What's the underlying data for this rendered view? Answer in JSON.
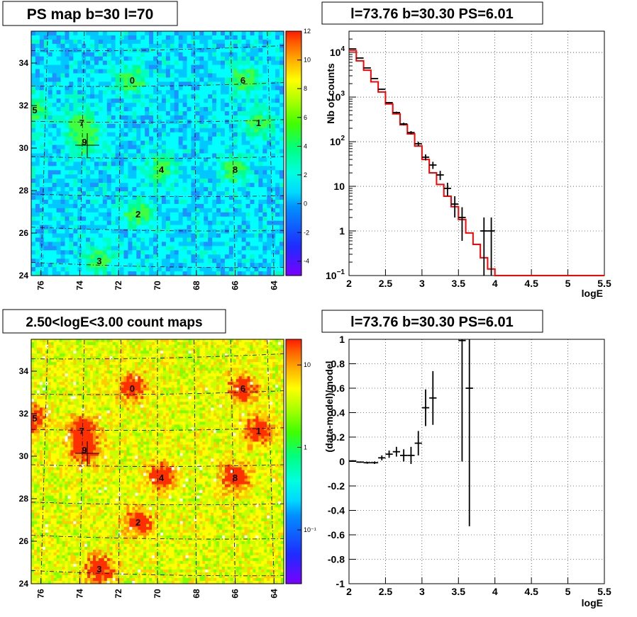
{
  "panels": {
    "ps_map": {
      "title": "PS map b=30 l=70",
      "x_ticks": [
        "76",
        "74",
        "72",
        "70",
        "68",
        "66",
        "64"
      ],
      "y_ticks": [
        "24",
        "26",
        "28",
        "30",
        "32",
        "34"
      ],
      "colorbar_ticks": [
        "12",
        "10",
        "8",
        "6",
        "4",
        "2",
        "0",
        "-2",
        "-4"
      ],
      "sources": [
        "0",
        "1",
        "2",
        "3",
        "4",
        "5",
        "6",
        "7",
        "8",
        "9"
      ]
    },
    "count_map": {
      "title": "2.50<logE<3.00 count maps",
      "x_ticks": [
        "76",
        "74",
        "72",
        "70",
        "68",
        "66",
        "64"
      ],
      "y_ticks": [
        "24",
        "26",
        "28",
        "30",
        "32",
        "34"
      ],
      "colorbar_ticks": [
        "10",
        "1",
        "10⁻¹"
      ],
      "sources": [
        "0",
        "1",
        "2",
        "3",
        "4",
        "5",
        "6",
        "7",
        "8",
        "9"
      ]
    },
    "spectrum": {
      "title": "l=73.76 b=30.30 PS=6.01"
    },
    "residual": {
      "title": "l=73.76 b=30.30 PS=6.01"
    }
  },
  "chart_data": [
    {
      "type": "heatmap",
      "title": "PS map b=30 l=70",
      "xlim": [
        76.5,
        63.5
      ],
      "ylim": [
        24,
        35.5
      ],
      "colorbar_range": [
        -5,
        12
      ],
      "sources": [
        {
          "label": "0",
          "l": 71.3,
          "b": 33.2
        },
        {
          "label": "1",
          "l": 64.8,
          "b": 31.2
        },
        {
          "label": "2",
          "l": 71.0,
          "b": 26.9
        },
        {
          "label": "3",
          "l": 73.0,
          "b": 24.7
        },
        {
          "label": "4",
          "l": 69.8,
          "b": 29.0
        },
        {
          "label": "5",
          "l": 76.5,
          "b": 31.8
        },
        {
          "label": "6",
          "l": 65.6,
          "b": 33.2
        },
        {
          "label": "7",
          "l": 73.9,
          "b": 31.2
        },
        {
          "label": "8",
          "l": 66.0,
          "b": 29.0
        },
        {
          "label": "9",
          "l": 73.76,
          "b": 30.3
        }
      ]
    },
    {
      "type": "line",
      "title": "l=73.76 b=30.30 PS=6.01",
      "xlabel": "logE",
      "ylabel": "Nb of counts",
      "xlim": [
        2,
        5.5
      ],
      "ylim": [
        0.1,
        30000
      ],
      "log_y": true,
      "x_ticks": [
        "2",
        "2.5",
        "3",
        "3.5",
        "4",
        "4.5",
        "5",
        "5.5"
      ],
      "y_ticks": [
        {
          "value": 0.1,
          "base": "10",
          "exp": "−1"
        },
        {
          "value": 1,
          "label": "1"
        },
        {
          "value": 10,
          "label": "10"
        },
        {
          "value": 100,
          "base": "10",
          "exp": "2"
        },
        {
          "value": 1000,
          "base": "10",
          "exp": "3"
        },
        {
          "value": 10000,
          "base": "10",
          "exp": "4"
        }
      ],
      "series": [
        {
          "kind": "model_step",
          "bin_edges": [
            2.0,
            2.1,
            2.2,
            2.3,
            2.4,
            2.5,
            2.6,
            2.7,
            2.8,
            2.9,
            3.0,
            3.1,
            3.2,
            3.3,
            3.4,
            3.5,
            3.6,
            3.7,
            3.8,
            3.9,
            4.0,
            4.1,
            4.2,
            4.3,
            4.4,
            4.5,
            4.6,
            4.7,
            4.8,
            4.9,
            5.0,
            5.1,
            5.2,
            5.3,
            5.4,
            5.5
          ],
          "values": [
            11000,
            6500,
            4000,
            2200,
            1300,
            700,
            420,
            240,
            150,
            80,
            40,
            20,
            11,
            6,
            3.5,
            1.8,
            0.9,
            0.5,
            0.25,
            0.14,
            0.1,
            0.1,
            0.1,
            0.1,
            0.1,
            0.1,
            0.1,
            0.1,
            0.1,
            0.1,
            0.1,
            0.1,
            0.1,
            0.1,
            0.1
          ]
        },
        {
          "kind": "data_points",
          "x": [
            2.05,
            2.15,
            2.25,
            2.35,
            2.45,
            2.55,
            2.65,
            2.75,
            2.85,
            2.95,
            3.05,
            3.15,
            3.25,
            3.35,
            3.45,
            3.55,
            3.65,
            3.75,
            3.85,
            3.95
          ],
          "y": [
            12000,
            7500,
            4500,
            2600,
            1500,
            750,
            450,
            250,
            160,
            90,
            45,
            30,
            18,
            9,
            4,
            2,
            0.1,
            0.1,
            1,
            1
          ],
          "yerr": [
            110,
            90,
            70,
            50,
            40,
            28,
            22,
            16,
            13,
            10,
            7,
            5.5,
            4.2,
            3,
            2,
            1.4,
            0,
            0,
            1,
            1
          ]
        }
      ]
    },
    {
      "type": "heatmap",
      "title": "2.50<logE<3.00 count maps",
      "xlim": [
        76.5,
        63.5
      ],
      "ylim": [
        24,
        35.5
      ],
      "colorbar_scale": "log",
      "sources": [
        {
          "label": "0",
          "l": 71.3,
          "b": 33.2
        },
        {
          "label": "1",
          "l": 64.8,
          "b": 31.2
        },
        {
          "label": "2",
          "l": 71.0,
          "b": 26.9
        },
        {
          "label": "3",
          "l": 73.0,
          "b": 24.7
        },
        {
          "label": "4",
          "l": 69.8,
          "b": 29.0
        },
        {
          "label": "5",
          "l": 76.5,
          "b": 31.8
        },
        {
          "label": "6",
          "l": 65.6,
          "b": 33.2
        },
        {
          "label": "7",
          "l": 73.9,
          "b": 31.2
        },
        {
          "label": "8",
          "l": 66.0,
          "b": 29.0
        },
        {
          "label": "9",
          "l": 73.76,
          "b": 30.3
        }
      ]
    },
    {
      "type": "scatter",
      "title": "l=73.76 b=30.30 PS=6.01",
      "xlabel": "logE",
      "ylabel": "(data-model)/model",
      "xlim": [
        2,
        5.5
      ],
      "ylim": [
        -1,
        1
      ],
      "x_ticks": [
        "2",
        "2.5",
        "3",
        "3.5",
        "4",
        "4.5",
        "5",
        "5.5"
      ],
      "y_ticks": [
        "-1",
        "-0.8",
        "-0.6",
        "-0.4",
        "-0.2",
        "0",
        "0.2",
        "0.4",
        "0.6",
        "0.8",
        "1"
      ],
      "series": [
        {
          "kind": "residual_points",
          "x": [
            2.05,
            2.15,
            2.25,
            2.35,
            2.45,
            2.55,
            2.65,
            2.75,
            2.85,
            2.95,
            3.05,
            3.15,
            3.55,
            3.65
          ],
          "y": [
            0.005,
            -0.005,
            -0.01,
            -0.01,
            0.03,
            0.06,
            0.08,
            0.05,
            0.05,
            0.15,
            0.44,
            0.52,
            0.99,
            0.6
          ],
          "yerr": [
            0.005,
            0.005,
            0.008,
            0.01,
            0.02,
            0.03,
            0.04,
            0.05,
            0.07,
            0.1,
            0.15,
            0.22,
            0.99,
            1.13
          ]
        }
      ]
    }
  ]
}
